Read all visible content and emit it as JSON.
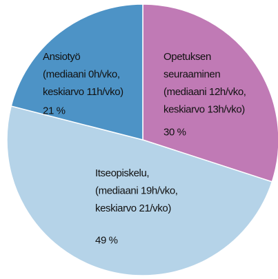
{
  "chart_data": {
    "type": "pie",
    "categories": [
      "Opetuksen\nseuraaminen\n(mediaani 12h/vko,\nkeskiarvo 13h/vko)",
      "Itseopiskelu,\n(mediaani 19h/vko,\nkeskiarvo 21/vko)",
      "Ansiotyö\n(mediaani 0h/vko,\nkeskiarvo 11h/vko)"
    ],
    "values": [
      30,
      49,
      21
    ],
    "value_labels": [
      "30 %",
      "49 %",
      "21 %"
    ],
    "colors": [
      "#c07ab5",
      "#b5d3e8",
      "#4d93c6"
    ]
  }
}
